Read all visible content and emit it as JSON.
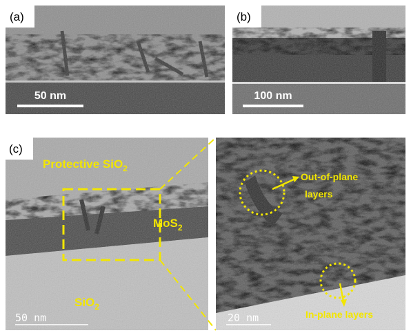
{
  "panels": {
    "a": {
      "label": "(a)",
      "scale_bar": "50 nm"
    },
    "b": {
      "label": "(b)",
      "scale_bar": "100 nm"
    },
    "c": {
      "label": "(c)",
      "scale_bar": "50 nm",
      "annotations": [
        {
          "text": "Protective SiO",
          "sub": "2"
        },
        {
          "text": "MoS",
          "sub": "2"
        },
        {
          "text": "SiO",
          "sub": "2"
        }
      ]
    },
    "zoom": {
      "scale_bar": "20 nm",
      "out_of_plane": [
        "Out-of-plane",
        "layers"
      ],
      "in_plane": "In-plane layers"
    }
  }
}
